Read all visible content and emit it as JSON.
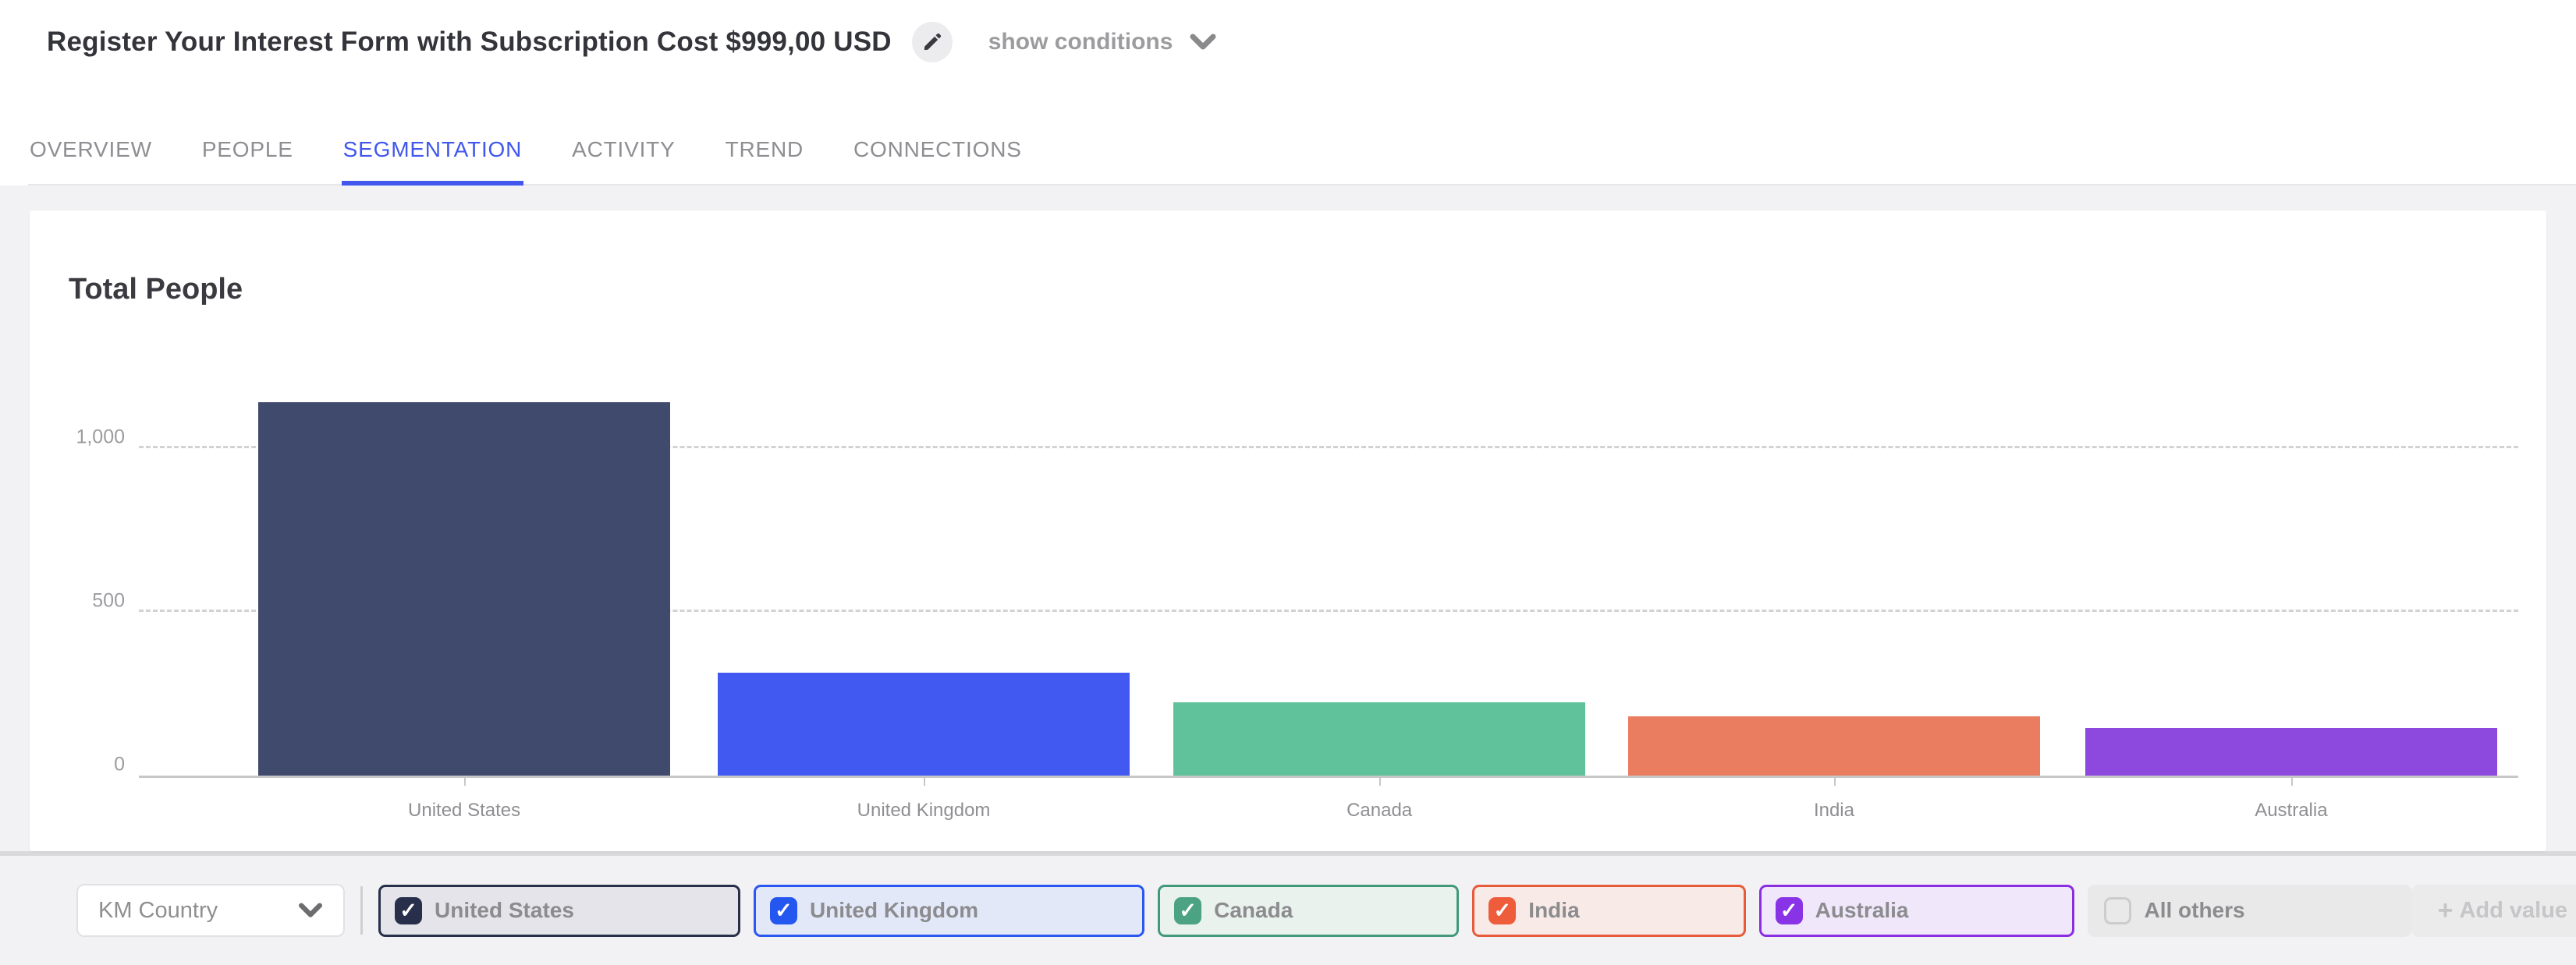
{
  "header": {
    "title": "Register Your Interest Form with Subscription Cost $999,00 USD",
    "show_conditions_label": "show conditions"
  },
  "tabs": {
    "items": [
      {
        "label": "OVERVIEW",
        "active": false
      },
      {
        "label": "PEOPLE",
        "active": false
      },
      {
        "label": "SEGMENTATION",
        "active": true
      },
      {
        "label": "ACTIVITY",
        "active": false
      },
      {
        "label": "TREND",
        "active": false
      },
      {
        "label": "CONNECTIONS",
        "active": false
      }
    ],
    "active_color": "#4157ee"
  },
  "chart_card": {
    "title": "Total People"
  },
  "chart_data": {
    "type": "bar",
    "title": "Total People",
    "categories": [
      "United States",
      "United Kingdom",
      "Canada",
      "India",
      "Australia"
    ],
    "values": [
      1140,
      315,
      225,
      180,
      145
    ],
    "colors": [
      "#404a6c",
      "#4159f0",
      "#60c29a",
      "#ea7d60",
      "#8d49de"
    ],
    "xlabel": "",
    "ylabel": "",
    "ylim": [
      0,
      1200
    ],
    "yticks": [
      0,
      500,
      1000
    ],
    "ytick_labels": [
      "0",
      "500",
      "1,000"
    ],
    "grid": "horizontal-dashed",
    "legend": "none"
  },
  "filter_bar": {
    "dropdown": {
      "value": "KM Country"
    },
    "chips": [
      {
        "label": "United States",
        "checked": true,
        "border": "#272f4a",
        "bg": "#e4e4ea",
        "box": "#272f4a"
      },
      {
        "label": "United Kingdom",
        "checked": true,
        "border": "#2b57f0",
        "bg": "#e3e8f9",
        "box": "#2456f0"
      },
      {
        "label": "Canada",
        "checked": true,
        "border": "#41997a",
        "bg": "#eaf2ee",
        "box": "#4ba383"
      },
      {
        "label": "India",
        "checked": true,
        "border": "#e75b3b",
        "bg": "#f8eae7",
        "box": "#ee5c3c"
      },
      {
        "label": "Australia",
        "checked": true,
        "border": "#8a2ee2",
        "bg": "#f1e7fb",
        "box": "#8833e6"
      },
      {
        "label": "All others",
        "checked": false,
        "border": "transparent",
        "bg": "#e9e9ea",
        "box": ""
      }
    ],
    "add_value_label": "Add value"
  }
}
